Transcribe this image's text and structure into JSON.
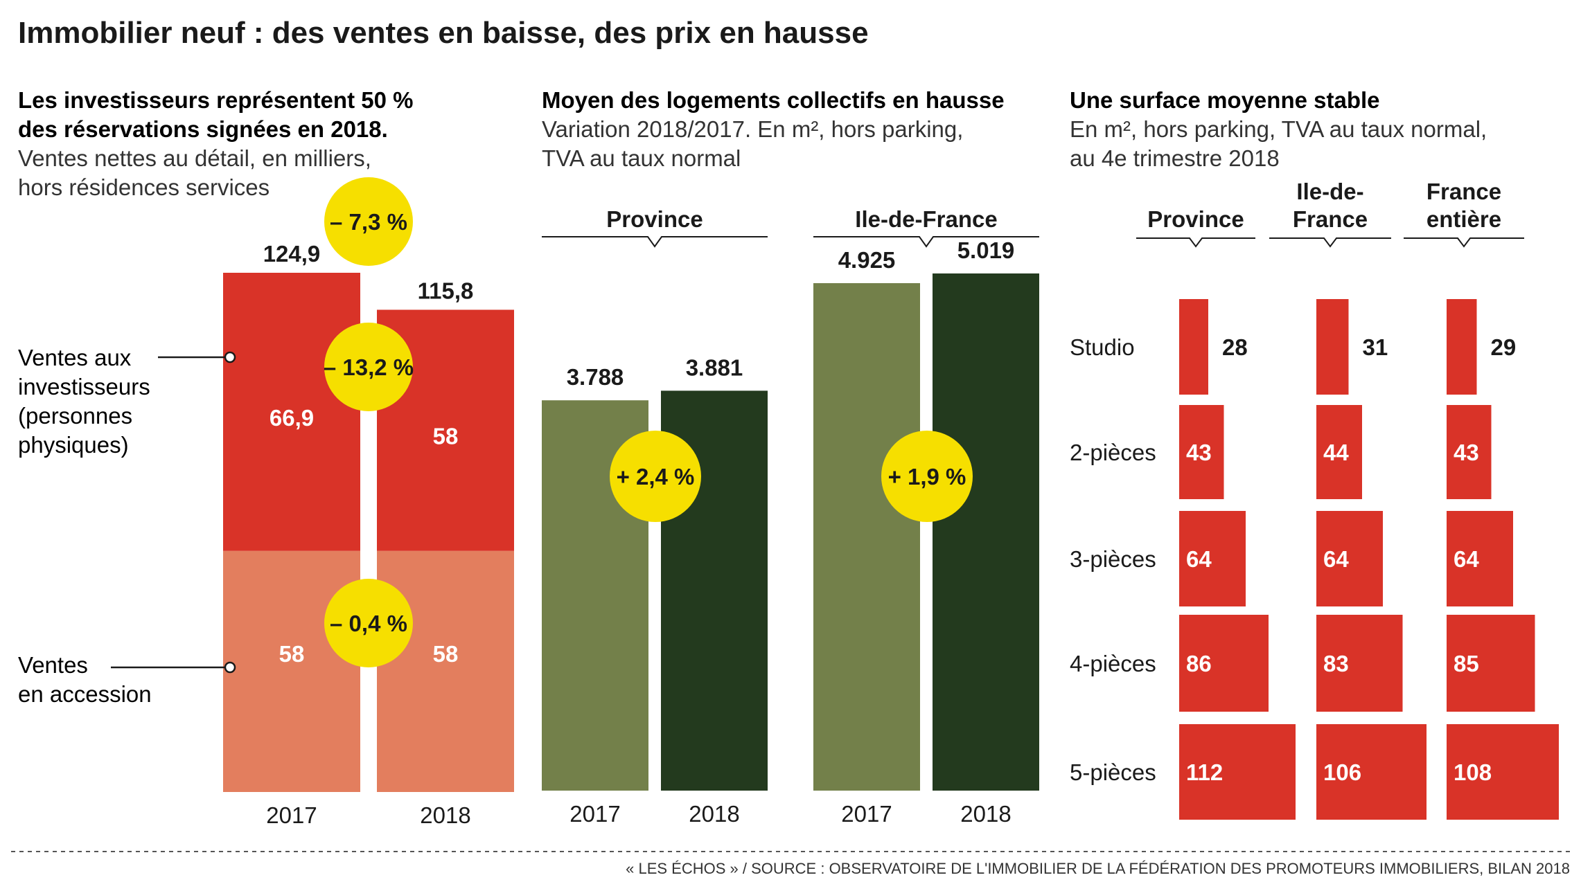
{
  "title": "Immobilier neuf : des ventes en baisse, des prix en hausse",
  "source": "« LES ÉCHOS » / SOURCE : OBSERVATOIRE DE L'IMMOBILIER DE LA FÉDÉRATION DES PROMOTEURS IMMOBILIERS, BILAN 2018",
  "colors": {
    "red": "#d93328",
    "salmon": "#e37e5e",
    "olive": "#73804a",
    "darkgreen": "#233a1e",
    "yellow": "#f6df00"
  },
  "panel1": {
    "subtitle_lines": [
      "Les investisseurs représentent 50 %",
      "des réservations signées en 2018."
    ],
    "desc_lines": [
      "Ventes nettes au détail, en milliers,",
      "hors résidences services"
    ],
    "label_invest_lines": [
      "Ventes aux",
      "investisseurs",
      "(personnes",
      "physiques)"
    ],
    "label_access_lines": [
      "Ventes",
      "en accession"
    ],
    "badge_total": "– 7,3 %",
    "badge_invest": "– 13,2 %",
    "badge_access": "– 0,4 %"
  },
  "panel2": {
    "subtitle": "Moyen des logements collectifs en hausse",
    "desc_lines": [
      "Variation 2018/2017. En m², hors parking,",
      "TVA au taux normal"
    ],
    "groups": [
      {
        "name": "Province",
        "v2017_label": "3.788",
        "v2018_label": "3.881",
        "badge": "+ 2,4 %"
      },
      {
        "name": "Ile-de-France",
        "v2017_label": "4.925",
        "v2018_label": "5.019",
        "badge": "+ 1,9 %"
      }
    ]
  },
  "panel3": {
    "subtitle": "Une surface moyenne stable",
    "desc_lines": [
      "En m², hors parking, TVA au taux normal,",
      "au 4e trimestre 2018"
    ],
    "col_headers": [
      [
        "Province"
      ],
      [
        "Ile-de-",
        "France"
      ],
      [
        "France",
        "entière"
      ]
    ],
    "rows": [
      {
        "label": "Studio",
        "values": [
          28,
          31,
          29
        ]
      },
      {
        "label": "2-pièces",
        "values": [
          43,
          44,
          43
        ]
      },
      {
        "label": "3-pièces",
        "values": [
          64,
          64,
          64
        ]
      },
      {
        "label": "4-pièces",
        "values": [
          86,
          83,
          85
        ]
      },
      {
        "label": "5-pièces",
        "values": [
          112,
          106,
          108
        ]
      }
    ]
  },
  "chart_data": [
    {
      "type": "bar",
      "stacked": true,
      "categories": [
        "2017",
        "2018"
      ],
      "totals": [
        124.9,
        115.8
      ],
      "total_labels": [
        "124,9",
        "115,8"
      ],
      "series": [
        {
          "name": "Ventes en accession",
          "values": [
            58,
            58
          ],
          "labels": [
            "58",
            "58"
          ]
        },
        {
          "name": "Ventes aux investisseurs (personnes physiques)",
          "values": [
            66.9,
            58
          ],
          "labels": [
            "66,9",
            "58"
          ]
        }
      ],
      "ylim": [
        0,
        130
      ]
    },
    {
      "type": "bar",
      "categories": [
        "2017",
        "2018"
      ],
      "series": [
        {
          "name": "Province",
          "values": [
            3788,
            3881
          ]
        },
        {
          "name": "Ile-de-France",
          "values": [
            4925,
            5019
          ]
        }
      ],
      "ylim": [
        0,
        5200
      ]
    },
    {
      "type": "bar",
      "categories": [
        "Studio",
        "2-pièces",
        "3-pièces",
        "4-pièces",
        "5-pièces"
      ],
      "series": [
        {
          "name": "Province",
          "values": [
            28,
            43,
            64,
            86,
            112
          ]
        },
        {
          "name": "Ile-de-France",
          "values": [
            31,
            44,
            64,
            83,
            106
          ]
        },
        {
          "name": "France entière",
          "values": [
            29,
            43,
            64,
            85,
            108
          ]
        }
      ]
    }
  ]
}
